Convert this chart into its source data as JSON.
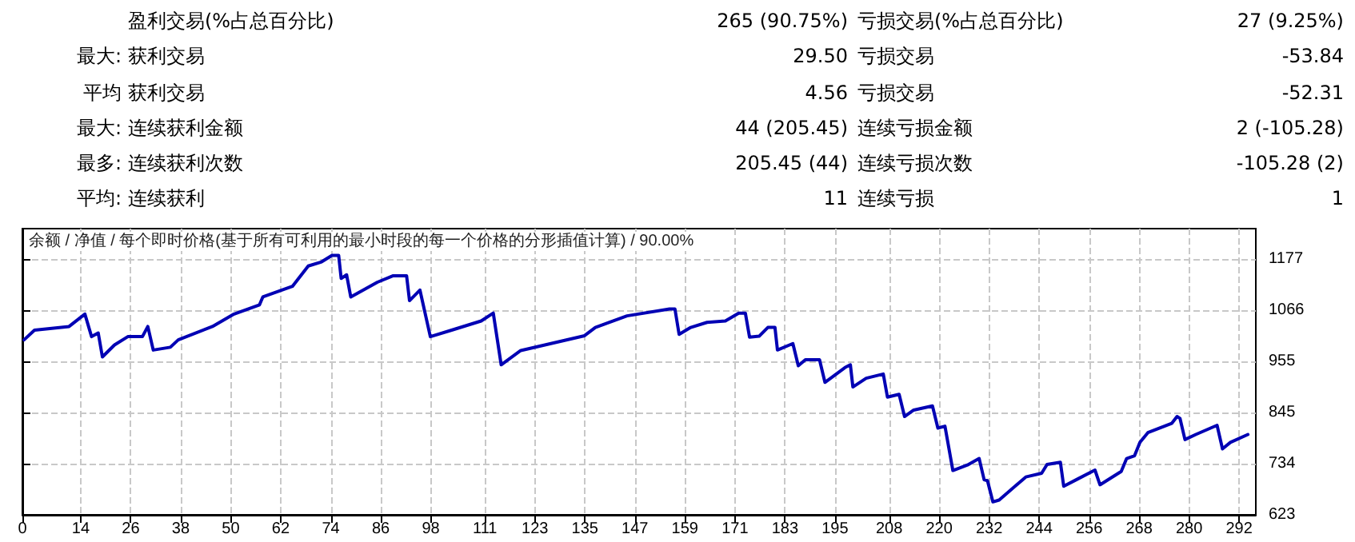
{
  "chart_data": {
    "type": "line",
    "title": "余额 / 净值 / 每个即时价格(基于所有可利用的最小时段的每一个价格的分形插值计算) / 90.00%",
    "annotations": [
      "盈利交易(%占总百分比)",
      "265 (90.75%)",
      "亏损交易(%占总百分比)",
      "27 (9.25%)",
      "最大:",
      "获利交易",
      "29.50",
      "亏损交易",
      "-53.84",
      "平均",
      "获利交易",
      "4.56",
      "亏损交易",
      "-52.31",
      "最大:",
      "连续获利金额",
      "44 (205.45)",
      "连续亏损金额",
      "2 (-105.28)",
      "最多:",
      "连续获利次数",
      "205.45 (44)",
      "连续亏损次数",
      "-105.28 (2)",
      "平均:",
      "连续获利",
      "11",
      "连续亏损",
      "1"
    ],
    "series": [
      {
        "color": "#0000b4",
        "x": [
          0.4,
          2.9,
          11.2,
          15.0,
          16.6,
          18.2,
          19.2,
          22.1,
          25.3,
          28.8,
          30.1,
          31.4,
          35.5,
          37.4,
          45.6,
          50.8,
          56.9,
          57.7,
          64.8,
          68.6,
          71.8,
          74.3,
          75.9,
          76.5,
          77.8,
          78.8,
          85.2,
          89.0,
          92.2,
          92.9,
          95.4,
          97.9,
          103.0,
          110.1,
          113.0,
          114.9,
          119.6,
          134.9,
          137.5,
          145.1,
          155.3,
          156.6,
          157.6,
          160.4,
          164.3,
          168.7,
          171.9,
          173.5,
          174.5,
          176.8,
          178.9,
          180.6,
          181.2,
          184.9,
          186.2,
          187.9,
          191.3,
          192.6,
          197.4,
          198.7,
          199.3,
          202.5,
          206.6,
          207.6,
          210.4,
          211.7,
          213.9,
          218.4,
          219.7,
          221.4,
          223.3,
          226.8,
          229.6,
          230.8,
          231.6,
          232.9,
          234.4,
          240.8,
          244.6,
          245.9,
          249.1,
          249.9,
          252.9,
          257.4,
          258.6,
          263.7,
          265.0,
          266.9,
          268.2,
          270.1,
          275.8,
          277.1,
          277.8,
          279.0,
          281.6,
          286.7,
          288.0,
          289.9,
          294.1
        ],
        "values": [
          1002,
          1023,
          1031,
          1058,
          1009,
          1017,
          965,
          991,
          1009,
          1009,
          1031,
          980,
          986,
          1002,
          1031,
          1058,
          1078,
          1095,
          1118,
          1162,
          1171,
          1185,
          1185,
          1135,
          1143,
          1095,
          1127,
          1141,
          1141,
          1087,
          1110,
          1009,
          1023,
          1043,
          1060,
          948,
          979,
          1011,
          1029,
          1054,
          1069,
          1069,
          1014,
          1029,
          1040,
          1043,
          1060,
          1060,
          1008,
          1010,
          1029,
          1029,
          980,
          994,
          946,
          959,
          959,
          910,
          942,
          948,
          900,
          919,
          928,
          878,
          884,
          836,
          850,
          859,
          811,
          815,
          719,
          731,
          745,
          699,
          697,
          651,
          655,
          705,
          713,
          732,
          737,
          685,
          699,
          720,
          688,
          717,
          745,
          751,
          780,
          801,
          821,
          836,
          832,
          786,
          797,
          817,
          766,
          780,
          797
        ]
      }
    ],
    "xlim": [
      0,
      296
    ],
    "xticks": [
      0,
      14,
      26,
      38,
      50,
      62,
      74,
      86,
      98,
      111,
      123,
      135,
      147,
      159,
      171,
      183,
      195,
      208,
      220,
      232,
      244,
      256,
      268,
      280,
      292
    ],
    "ylim": [
      623,
      1243
    ],
    "yticks": [
      623,
      734,
      845,
      955,
      1066,
      1177
    ],
    "grid": true,
    "marker": "none",
    "line_style": "solid"
  }
}
